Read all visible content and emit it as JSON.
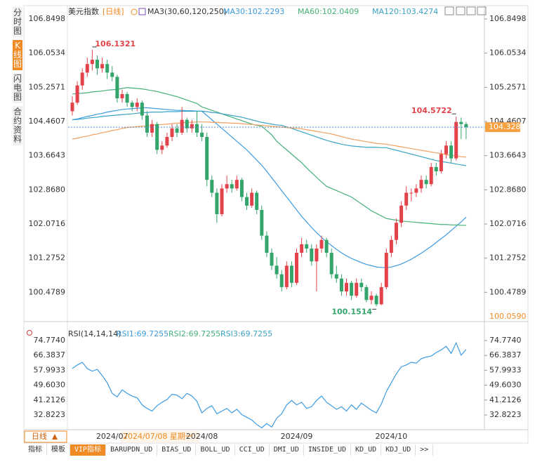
{
  "sidebar": [
    "分时图",
    "K线图",
    "闪电图",
    "合约资料"
  ],
  "period": "日线",
  "tabs": [
    "指标",
    "模板",
    "VIP指标",
    "BARUPDN_UD",
    "BIAS_UD",
    "BOLL_UD",
    "CCI_UD",
    "DMI_UD",
    "INSIDE_UD",
    "KD_UD",
    "KDJ_UD",
    ">>"
  ],
  "chart_data": [
    {
      "type": "candlestick",
      "title": "美元指数",
      "subtitle": "[日线]",
      "indicator": "MA3(30,60,120,250)",
      "up_color": "#e2434b",
      "down_color": "#33a56a",
      "ylim": [
        100.059,
        107.13
      ],
      "yticks": [
        106.8498,
        106.0534,
        105.2571,
        104.4607,
        103.6643,
        {
          "value": 102.868,
          "label": "102.8680"
        },
        102.0716,
        101.2752,
        100.4789
      ],
      "bottom_price": {
        "value": 100.059,
        "label": "100.0590"
      },
      "last_price": 104.3285,
      "extreme_labels": [
        106.1321,
        104.5722,
        100.1514
      ],
      "cursor_date": "2024/07/08 星期一",
      "categories": [
        null,
        null,
        null,
        null,
        null,
        null,
        null,
        null,
        "2024/07",
        null,
        null,
        null,
        null,
        null,
        null,
        null,
        null,
        null,
        null,
        null,
        null,
        null,
        null,
        null,
        null,
        null,
        "2024/08",
        null,
        null,
        null,
        null,
        null,
        null,
        null,
        null,
        null,
        null,
        null,
        null,
        null,
        null,
        null,
        null,
        null,
        null,
        "2024/09",
        null,
        null,
        null,
        null,
        null,
        null,
        null,
        null,
        null,
        null,
        null,
        null,
        null,
        null,
        null,
        null,
        null,
        null,
        "2024/10",
        null,
        null,
        null,
        null,
        null,
        null,
        null,
        null,
        null,
        null,
        null,
        null,
        null,
        null,
        null
      ],
      "candles": [
        [
          104.7,
          105.05,
          104.6,
          104.9
        ],
        [
          104.9,
          105.4,
          104.85,
          105.3
        ],
        [
          105.3,
          105.7,
          105.2,
          105.6
        ],
        [
          105.6,
          105.95,
          105.5,
          105.8
        ],
        [
          105.8,
          106.1321,
          105.65,
          105.9
        ],
        [
          105.9,
          106.0,
          105.55,
          105.7
        ],
        [
          105.7,
          105.95,
          105.6,
          105.8
        ],
        [
          105.8,
          105.9,
          105.45,
          105.6
        ],
        [
          105.6,
          105.75,
          105.4,
          105.5
        ],
        [
          105.5,
          105.55,
          104.9,
          105.0
        ],
        [
          105.0,
          105.2,
          104.9,
          105.1
        ],
        [
          105.1,
          105.15,
          104.8,
          104.9
        ],
        [
          104.9,
          104.95,
          104.7,
          104.8
        ],
        [
          104.8,
          105.0,
          104.7,
          104.9
        ],
        [
          104.9,
          104.95,
          104.5,
          104.6
        ],
        [
          104.6,
          104.7,
          104.1,
          104.2
        ],
        [
          104.2,
          104.5,
          104.1,
          104.4
        ],
        [
          104.4,
          104.45,
          103.7,
          103.8
        ],
        [
          103.8,
          104.0,
          103.7,
          103.9
        ],
        [
          103.9,
          104.2,
          103.85,
          104.1
        ],
        [
          104.1,
          104.4,
          104.0,
          104.3
        ],
        [
          104.3,
          104.4,
          104.1,
          104.2
        ],
        [
          104.2,
          104.8,
          104.15,
          104.5
        ],
        [
          104.5,
          104.55,
          104.2,
          104.3
        ],
        [
          104.3,
          104.5,
          104.2,
          104.4
        ],
        [
          104.4,
          104.7,
          104.1,
          104.2
        ],
        [
          104.2,
          104.4,
          104.0,
          104.1
        ],
        [
          104.1,
          104.2,
          102.95,
          103.1
        ],
        [
          103.1,
          103.2,
          102.7,
          102.8
        ],
        [
          102.8,
          102.9,
          102.1,
          102.3
        ],
        [
          102.3,
          103.0,
          102.25,
          102.9
        ],
        [
          102.9,
          103.2,
          102.8,
          103.0
        ],
        [
          103.0,
          103.1,
          102.8,
          102.9
        ],
        [
          102.9,
          103.2,
          102.85,
          103.1
        ],
        [
          103.1,
          103.15,
          102.6,
          102.7
        ],
        [
          102.7,
          102.8,
          102.4,
          102.5
        ],
        [
          102.5,
          102.9,
          102.45,
          102.8
        ],
        [
          102.8,
          102.85,
          102.3,
          102.4
        ],
        [
          102.4,
          102.5,
          101.7,
          101.8
        ],
        [
          101.8,
          101.9,
          101.3,
          101.4
        ],
        [
          101.4,
          101.5,
          101.0,
          101.1
        ],
        [
          101.1,
          101.3,
          100.8,
          100.9
        ],
        [
          100.9,
          101.0,
          100.5,
          100.6
        ],
        [
          100.6,
          101.2,
          100.55,
          101.1
        ],
        [
          101.1,
          101.2,
          100.6,
          100.7
        ],
        [
          100.7,
          101.5,
          100.65,
          101.4
        ],
        [
          101.4,
          101.75,
          101.3,
          101.6
        ],
        [
          101.6,
          101.7,
          101.4,
          101.5
        ],
        [
          101.5,
          101.6,
          101.1,
          101.2
        ],
        [
          101.2,
          101.6,
          100.5,
          101.5
        ],
        [
          101.5,
          101.8,
          101.4,
          101.7
        ],
        [
          101.7,
          101.75,
          101.3,
          101.4
        ],
        [
          101.4,
          101.5,
          100.8,
          100.9
        ],
        [
          100.9,
          101.1,
          100.7,
          100.8
        ],
        [
          100.8,
          100.9,
          100.4,
          100.5
        ],
        [
          100.5,
          100.8,
          100.4,
          100.7
        ],
        [
          100.7,
          100.75,
          100.3,
          100.4
        ],
        [
          100.4,
          100.8,
          100.35,
          100.7
        ],
        [
          100.7,
          100.8,
          100.5,
          100.6
        ],
        [
          100.6,
          100.65,
          100.25,
          100.3
        ],
        [
          100.3,
          100.5,
          100.2,
          100.4
        ],
        [
          100.4,
          100.45,
          100.1514,
          100.2
        ],
        [
          100.2,
          100.7,
          100.18,
          100.6
        ],
        [
          100.6,
          101.5,
          100.55,
          101.4
        ],
        [
          101.4,
          101.8,
          101.3,
          101.7
        ],
        [
          101.7,
          102.2,
          101.6,
          102.1
        ],
        [
          102.1,
          102.6,
          102.0,
          102.5
        ],
        [
          102.5,
          102.95,
          102.4,
          102.8
        ],
        [
          102.8,
          102.9,
          102.6,
          102.8
        ],
        [
          102.8,
          103.0,
          102.7,
          102.9
        ],
        [
          102.9,
          103.2,
          102.8,
          103.1
        ],
        [
          103.1,
          103.2,
          102.9,
          103.0
        ],
        [
          103.0,
          103.5,
          102.95,
          103.4
        ],
        [
          103.4,
          103.5,
          103.2,
          103.3
        ],
        [
          103.3,
          103.8,
          103.25,
          103.7
        ],
        [
          103.7,
          104.0,
          103.6,
          103.9
        ],
        [
          103.9,
          104.0,
          103.5,
          103.6
        ],
        [
          103.6,
          104.5722,
          103.55,
          104.45
        ],
        [
          104.45,
          104.55,
          104.05,
          104.4
        ],
        [
          104.4,
          104.45,
          104.05,
          104.3285
        ]
      ],
      "series": [
        {
          "label": "MA30:102.2293",
          "color": "#3d9be0",
          "values": [
            104.5,
            104.52,
            104.55,
            104.58,
            104.6,
            104.63,
            104.65,
            104.68,
            104.7,
            104.72,
            104.74,
            104.75,
            104.76,
            104.77,
            104.78,
            104.78,
            104.77,
            104.76,
            104.75,
            104.74,
            104.73,
            104.72,
            104.72,
            104.71,
            104.71,
            104.7,
            104.7,
            104.6,
            104.5,
            104.4,
            104.3,
            104.2,
            104.1,
            104.0,
            103.9,
            103.8,
            103.68,
            103.56,
            103.44,
            103.3,
            103.15,
            103.0,
            102.85,
            102.7,
            102.55,
            102.4,
            102.25,
            102.12,
            101.99,
            101.87,
            101.76,
            101.66,
            101.57,
            101.48,
            101.4,
            101.33,
            101.27,
            101.22,
            101.17,
            101.13,
            101.1,
            101.07,
            101.06,
            101.05,
            101.07,
            101.1,
            101.14,
            101.19,
            101.25,
            101.32,
            101.39,
            101.47,
            101.55,
            101.64,
            101.73,
            101.82,
            101.92,
            102.02,
            102.12,
            102.23
          ]
        },
        {
          "label": "MA60:102.0409",
          "color": "#45b07a",
          "values": [
            105.1,
            105.11,
            105.12,
            105.13,
            105.15,
            105.16,
            105.17,
            105.19,
            105.2,
            105.21,
            105.23,
            105.25,
            105.24,
            105.23,
            105.22,
            105.2,
            105.18,
            105.16,
            105.13,
            105.1,
            105.07,
            105.04,
            105.0,
            104.96,
            104.92,
            104.88,
            104.8,
            104.76,
            104.72,
            104.68,
            104.64,
            104.6,
            104.56,
            104.52,
            104.48,
            104.44,
            104.4,
            104.37,
            104.35,
            104.25,
            104.15,
            104.0,
            103.9,
            103.8,
            103.7,
            103.6,
            103.5,
            103.38,
            103.27,
            103.16,
            103.05,
            102.95,
            102.9,
            102.85,
            102.8,
            102.75,
            102.7,
            102.62,
            102.54,
            102.46,
            102.38,
            102.32,
            102.26,
            102.2,
            102.18,
            102.16,
            102.14,
            102.13,
            102.12,
            102.11,
            102.1,
            102.09,
            102.08,
            102.07,
            102.06,
            102.06,
            102.05,
            102.05,
            102.04,
            102.04
          ]
        },
        {
          "label": "MA120:103.4274",
          "color": "#3aa3c4",
          "values": [
            104.5,
            104.51,
            104.52,
            104.54,
            104.55,
            104.56,
            104.58,
            104.59,
            104.6,
            104.61,
            104.62,
            104.63,
            104.64,
            104.65,
            104.67,
            104.67,
            104.68,
            104.68,
            104.68,
            104.69,
            104.69,
            104.69,
            104.7,
            104.7,
            104.7,
            104.7,
            104.7,
            104.69,
            104.67,
            104.66,
            104.64,
            104.62,
            104.6,
            104.58,
            104.56,
            104.53,
            104.5,
            104.47,
            104.44,
            104.42,
            104.4,
            104.38,
            104.37,
            104.33,
            104.3,
            104.26,
            104.22,
            104.18,
            104.14,
            104.1,
            104.06,
            104.02,
            103.99,
            103.96,
            103.93,
            103.91,
            103.89,
            103.88,
            103.87,
            103.86,
            103.86,
            103.86,
            103.85,
            103.85,
            103.82,
            103.79,
            103.76,
            103.73,
            103.7,
            103.67,
            103.64,
            103.61,
            103.58,
            103.55,
            103.53,
            103.51,
            103.49,
            103.47,
            103.45,
            103.43
          ]
        },
        {
          "color": "#f0a060",
          "values": [
            104.05,
            104.07,
            104.1,
            104.12,
            104.15,
            104.17,
            104.2,
            104.22,
            104.25,
            104.27,
            104.3,
            104.32,
            104.33,
            104.34,
            104.35,
            104.36,
            104.37,
            104.38,
            104.39,
            104.4,
            104.41,
            104.42,
            104.43,
            104.44,
            104.44,
            104.45,
            104.45,
            104.45,
            104.44,
            104.44,
            104.43,
            104.43,
            104.42,
            104.42,
            104.41,
            104.4,
            104.39,
            104.38,
            104.37,
            104.36,
            104.35,
            104.34,
            104.33,
            104.32,
            104.31,
            104.3,
            104.29,
            104.27,
            104.25,
            104.23,
            104.21,
            104.19,
            104.17,
            104.14,
            104.11,
            104.08,
            104.05,
            104.03,
            104.01,
            103.99,
            103.97,
            103.95,
            103.94,
            103.93,
            103.91,
            103.89,
            103.87,
            103.85,
            103.83,
            103.81,
            103.79,
            103.77,
            103.75,
            103.73,
            103.71,
            103.69,
            103.67,
            103.66,
            103.64,
            103.63
          ]
        }
      ]
    },
    {
      "type": "line",
      "title": "RSI(14,14,14)",
      "ylim": [
        24.51,
        82.29
      ],
      "yticks": [
        {
          "value": 74.774,
          "label": "74.7740"
        },
        66.3837,
        57.9933,
        {
          "value": 49.603,
          "label": "49.6030"
        },
        41.2126,
        32.8223
      ],
      "legend": [
        {
          "label": "RSI1:69.7255",
          "color": "#3d9be0"
        },
        {
          "label": "RSI2:69.7255",
          "color": "#45b07a"
        },
        {
          "label": "RSI3:69.7255",
          "color": "#3aa3c4"
        }
      ],
      "color": "#3d9be0",
      "values": [
        59.0,
        61.0,
        62.5,
        59.0,
        57.5,
        58.5,
        55.0,
        51.0,
        45.0,
        43.0,
        47.0,
        45.0,
        43.5,
        42.5,
        38.5,
        36.5,
        35.0,
        38.0,
        40.0,
        41.5,
        44.5,
        44.0,
        42.0,
        45.0,
        43.5,
        40.5,
        34.0,
        36.5,
        38.0,
        33.5,
        35.0,
        36.5,
        34.0,
        36.0,
        33.0,
        31.5,
        30.0,
        27.5,
        25.5,
        28.0,
        26.0,
        31.0,
        33.5,
        38.5,
        41.0,
        38.5,
        40.0,
        36.5,
        37.5,
        41.0,
        43.5,
        40.0,
        38.0,
        36.0,
        37.5,
        35.0,
        38.5,
        36.0,
        39.5,
        37.5,
        35.5,
        34.0,
        39.0,
        46.0,
        51.0,
        56.0,
        60.0,
        61.0,
        62.5,
        62.0,
        64.5,
        65.5,
        66.0,
        68.0,
        69.5,
        71.5,
        67.5,
        73.5,
        66.5,
        69.7255
      ]
    }
  ]
}
